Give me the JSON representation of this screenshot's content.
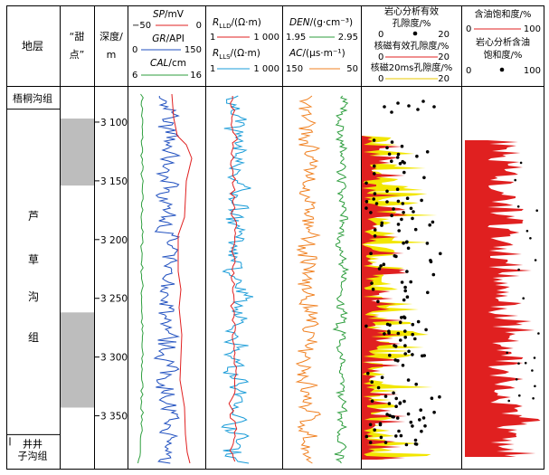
{
  "chart_data": {
    "type": "well-log",
    "title": "",
    "columns": {
      "strata": "地层",
      "sweet_spot": "“甜点”",
      "depth": [
        "深度/",
        "m"
      ],
      "track1": [
        {
          "name": "SP/mV",
          "min": -50,
          "max": 0,
          "color": "#e02020"
        },
        {
          "name": "GR/API",
          "min": 0,
          "max": 150,
          "color": "#1f4fbf"
        },
        {
          "name": "CAL/cm",
          "min": 6,
          "max": 16,
          "color": "#2e9e3e"
        }
      ],
      "track2": [
        {
          "name": "RLLD/(Ω·m)",
          "min": "1",
          "max": "1 000",
          "color": "#e02020"
        },
        {
          "name": "RLLS/(Ω·m)",
          "min": "1",
          "max": "1 000",
          "color": "#1a9cd8"
        }
      ],
      "track3": [
        {
          "name": "DEN/(g·cm⁻³)",
          "min": "1.95",
          "max": "2.95",
          "color": "#2e9e3e"
        },
        {
          "name": "AC/(μs·m⁻¹)",
          "min": "150",
          "max": "50",
          "color": "#f08020"
        }
      ],
      "track4": [
        {
          "name": "岩心分析有效孔隙度/%",
          "min": "0",
          "max": "20",
          "marker": "dot"
        },
        {
          "name": "核磁有效孔隙度/%",
          "min": "0",
          "max": "20",
          "color": "#e02020"
        },
        {
          "name": "核磁20ms孔隙度/%",
          "min": "0",
          "max": "20",
          "color": "#f2e600"
        }
      ],
      "track5": [
        {
          "name": "含油饱和度/%",
          "min": "0",
          "max": "100",
          "color": "#e02020"
        },
        {
          "name": "岩心分析含油饱和度/%",
          "min": "0",
          "max": "100",
          "marker": "dot"
        }
      ]
    },
    "headers": {
      "t1": {
        "l1a": "SP",
        "l1b": "/mV",
        "l1min": "−50",
        "l1max": "0",
        "l2a": "GR",
        "l2b": "/API",
        "l2min": "0",
        "l2max": "150",
        "l3a": "CAL",
        "l3b": "/cm",
        "l3min": "6",
        "l3max": "16"
      },
      "t2": {
        "l1a": "R",
        "l1sub": "LLD",
        "l1b": "/(Ω·m)",
        "l1min": "1",
        "l1max": "1 000",
        "l2a": "R",
        "l2sub": "LLS",
        "l2b": "/(Ω·m)",
        "l2min": "1",
        "l2max": "1 000"
      },
      "t3": {
        "l1a": "DEN",
        "l1b": "/(g·cm⁻³)",
        "l1min": "1.95",
        "l1max": "2.95",
        "l2a": "AC",
        "l2b": "/(μs·m⁻¹)",
        "l2min": "150",
        "l2max": "50"
      },
      "t4": {
        "l1": "岩心分析有效",
        "l2": "孔隙度/%",
        "l2min": "0",
        "l2max": "20",
        "l3": "核磁有效孔隙度/%",
        "l3min": "0",
        "l3max": "20",
        "l4": "核磁20ms孔隙度/%",
        "l4min": "0",
        "l4max": "20"
      },
      "t5": {
        "l1": "含油饱和度/%",
        "l1min": "0",
        "l1max": "100",
        "l2": "岩心分析含油",
        "l3": "饱和度/%",
        "l3min": "0",
        "l3max": "100"
      }
    },
    "depth_ticks": [
      "3 100",
      "3 150",
      "3 200",
      "3 250",
      "3 300",
      "3 350"
    ],
    "depth_tick_values": [
      3100,
      3150,
      3200,
      3250,
      3300,
      3350
    ],
    "depth_range": [
      3070,
      3395
    ],
    "formations": [
      {
        "name": "梧桐沟组",
        "top": 3070,
        "bottom": 3089
      },
      {
        "name": "芦草沟组",
        "chars": [
          "芦",
          "草",
          "沟",
          "组"
        ],
        "top": 3089,
        "bottom": 3366
      },
      {
        "name": "井井子沟组",
        "line1": "井井",
        "line2": "子沟组",
        "top": 3366,
        "bottom": 3395
      }
    ],
    "sweet_spots": [
      {
        "top": 3097,
        "bottom": 3154
      },
      {
        "top": 3262,
        "bottom": 3343
      }
    ]
  }
}
